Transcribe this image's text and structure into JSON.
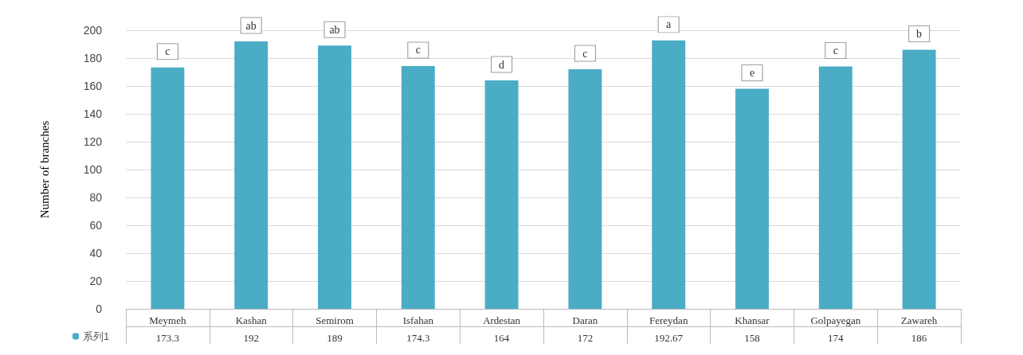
{
  "chart_data": {
    "type": "bar",
    "ylabel": "Number of branches",
    "categories": [
      "Meymeh",
      "Kashan",
      "Semirom",
      "Isfahan",
      "Ardestan",
      "Daran",
      "Fereydan",
      "Khansar",
      "Golpayegan",
      "Zawareh"
    ],
    "series": [
      {
        "name": "系列1",
        "color": "#4bacc6",
        "values": [
          173.3,
          192,
          189,
          174.3,
          164,
          172,
          192.67,
          158,
          174,
          186
        ]
      }
    ],
    "ylim": [
      0,
      200
    ],
    "yticks": [
      0,
      20,
      40,
      60,
      80,
      100,
      120,
      140,
      160,
      180,
      200
    ],
    "grid": "y",
    "legend": "bottom left",
    "data_labels": true,
    "annotations": [
      {
        "text": "c",
        "x": "Meymeh",
        "y": 173.3
      },
      {
        "text": "ab",
        "x": "Kashan",
        "y": 192
      },
      {
        "text": "ab",
        "x": "Semirom",
        "y": 189
      },
      {
        "text": "c",
        "x": "Isfahan",
        "y": 174.3
      },
      {
        "text": "d",
        "x": "Ardestan",
        "y": 164
      },
      {
        "text": "c",
        "x": "Daran",
        "y": 172
      },
      {
        "text": "a",
        "x": "Fereydan",
        "y": 192.67
      },
      {
        "text": "e",
        "x": "Khansar",
        "y": 158
      },
      {
        "text": "c",
        "x": "Golpayegan",
        "y": 174
      },
      {
        "text": "b",
        "x": "Zawareh",
        "y": 186
      }
    ]
  }
}
